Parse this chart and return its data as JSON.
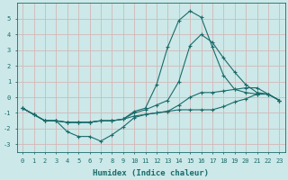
{
  "xlabel": "Humidex (Indice chaleur)",
  "background_color": "#cce8e8",
  "grid_color": "#d4b8b8",
  "line_color": "#1a6b6b",
  "xlim": [
    -0.5,
    23.5
  ],
  "ylim": [
    -3.5,
    6.0
  ],
  "yticks": [
    -3,
    -2,
    -1,
    0,
    1,
    2,
    3,
    4,
    5
  ],
  "xticks": [
    0,
    1,
    2,
    3,
    4,
    5,
    6,
    7,
    8,
    9,
    10,
    11,
    12,
    13,
    14,
    15,
    16,
    17,
    18,
    19,
    20,
    21,
    22,
    23
  ],
  "series": [
    {
      "x": [
        0,
        1,
        2,
        3,
        4,
        5,
        6,
        7,
        8,
        9,
        10,
        11,
        12,
        13,
        14,
        15,
        16,
        17,
        18,
        19,
        20,
        21,
        22,
        23
      ],
      "y": [
        -0.7,
        -1.1,
        -1.5,
        -1.5,
        -1.6,
        -1.6,
        -1.6,
        -1.5,
        -1.5,
        -1.4,
        -0.9,
        -0.7,
        0.8,
        3.2,
        4.9,
        5.5,
        5.1,
        3.2,
        1.4,
        0.5,
        0.3,
        0.2,
        0.2,
        -0.2
      ]
    },
    {
      "x": [
        0,
        1,
        2,
        3,
        4,
        5,
        6,
        7,
        8,
        9,
        10,
        11,
        12,
        13,
        14,
        15,
        16,
        17,
        18,
        19,
        20,
        21,
        22,
        23
      ],
      "y": [
        -0.7,
        -1.1,
        -1.5,
        -1.5,
        -1.6,
        -1.6,
        -1.6,
        -1.5,
        -1.5,
        -1.4,
        -1.0,
        -0.8,
        -0.5,
        -0.2,
        1.0,
        3.3,
        4.0,
        3.5,
        2.5,
        1.6,
        0.8,
        0.3,
        0.2,
        -0.2
      ]
    },
    {
      "x": [
        0,
        1,
        2,
        3,
        4,
        5,
        6,
        7,
        8,
        9,
        10,
        11,
        12,
        13,
        14,
        15,
        16,
        17,
        18,
        19,
        20,
        21,
        22,
        23
      ],
      "y": [
        -0.7,
        -1.1,
        -1.5,
        -1.5,
        -1.6,
        -1.6,
        -1.6,
        -1.5,
        -1.5,
        -1.4,
        -1.2,
        -1.1,
        -1.0,
        -0.9,
        -0.5,
        0.0,
        0.3,
        0.3,
        0.4,
        0.5,
        0.6,
        0.6,
        0.2,
        -0.2
      ]
    },
    {
      "x": [
        0,
        1,
        2,
        3,
        4,
        5,
        6,
        7,
        8,
        9,
        10,
        11,
        12,
        13,
        14,
        15,
        16,
        17,
        18,
        19,
        20,
        21,
        22,
        23
      ],
      "y": [
        -0.7,
        -1.1,
        -1.5,
        -1.5,
        -2.2,
        -2.5,
        -2.5,
        -2.8,
        -2.4,
        -1.9,
        -1.3,
        -1.1,
        -1.0,
        -0.9,
        -0.8,
        -0.8,
        -0.8,
        -0.8,
        -0.6,
        -0.3,
        -0.1,
        0.2,
        0.2,
        -0.2
      ]
    }
  ]
}
